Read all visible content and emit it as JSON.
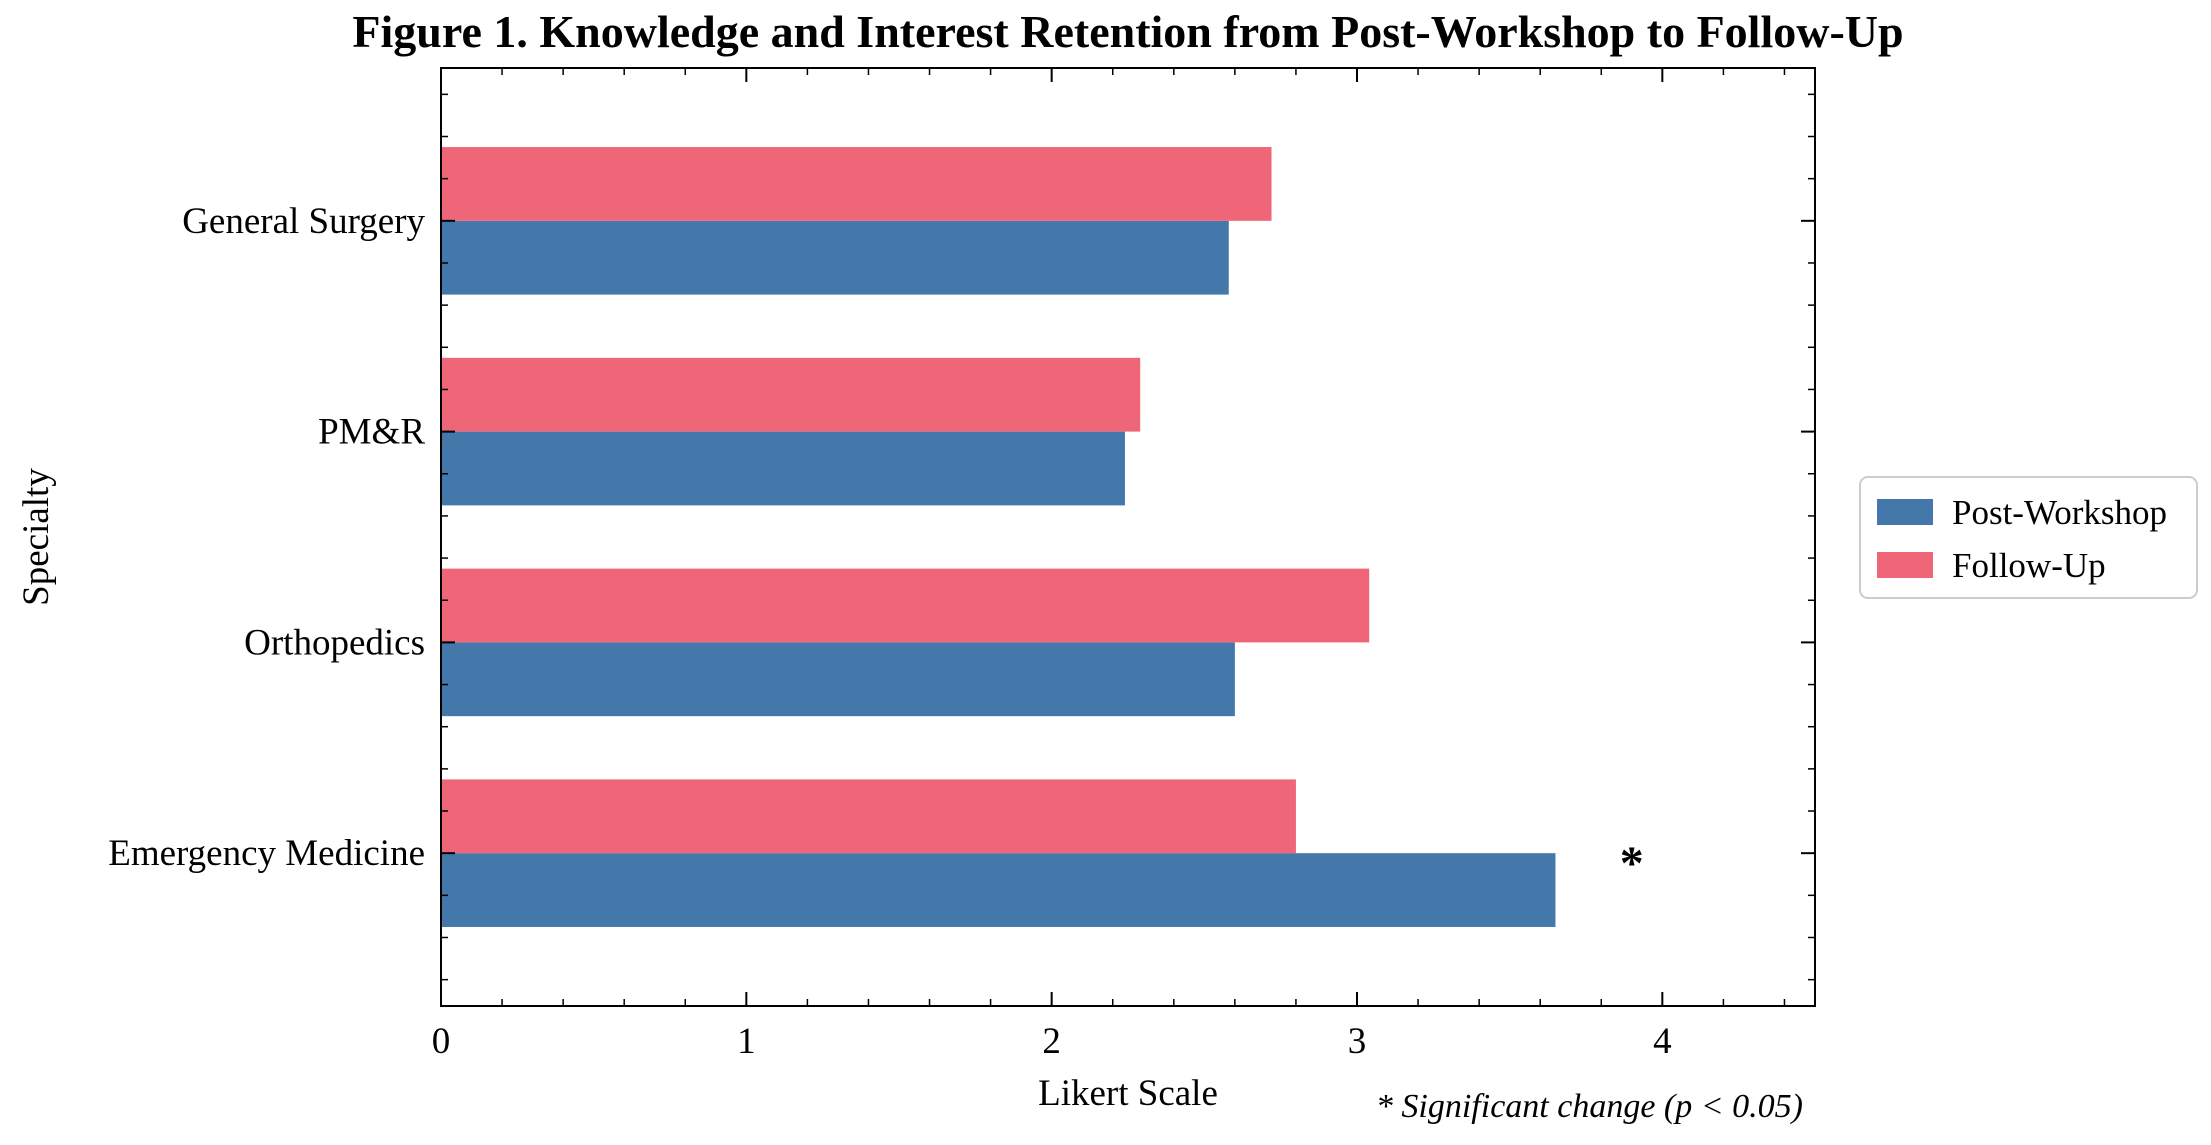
{
  "chart_data": {
    "type": "bar",
    "orientation": "horizontal",
    "title": "Figure 1. Knowledge and Interest Retention from Post-Workshop to Follow-Up",
    "xlabel": "Likert Scale",
    "ylabel": "Specialty",
    "categories": [
      "Emergency Medicine",
      "Orthopedics",
      "PM&R",
      "General Surgery"
    ],
    "series": [
      {
        "name": "Post-Workshop",
        "color": "#4477AA",
        "values": [
          3.65,
          2.6,
          2.24,
          2.58
        ]
      },
      {
        "name": "Follow-Up",
        "color": "#EE6677",
        "values": [
          2.8,
          3.04,
          2.29,
          2.72
        ]
      }
    ],
    "xlim": [
      0,
      4.5
    ],
    "xticks": [
      0,
      1,
      2,
      3,
      4
    ],
    "xtick_labels": [
      "0",
      "1",
      "2",
      "3",
      "4"
    ],
    "grid": false,
    "legend": {
      "placement": "outside right",
      "entries": [
        "Post-Workshop",
        "Follow-Up"
      ]
    },
    "annotations": [
      {
        "text": "*",
        "category": "Emergency Medicine",
        "x": 3.9,
        "meaning": "significance marker"
      }
    ],
    "footnote": "* Significant change (p < 0.05)"
  }
}
